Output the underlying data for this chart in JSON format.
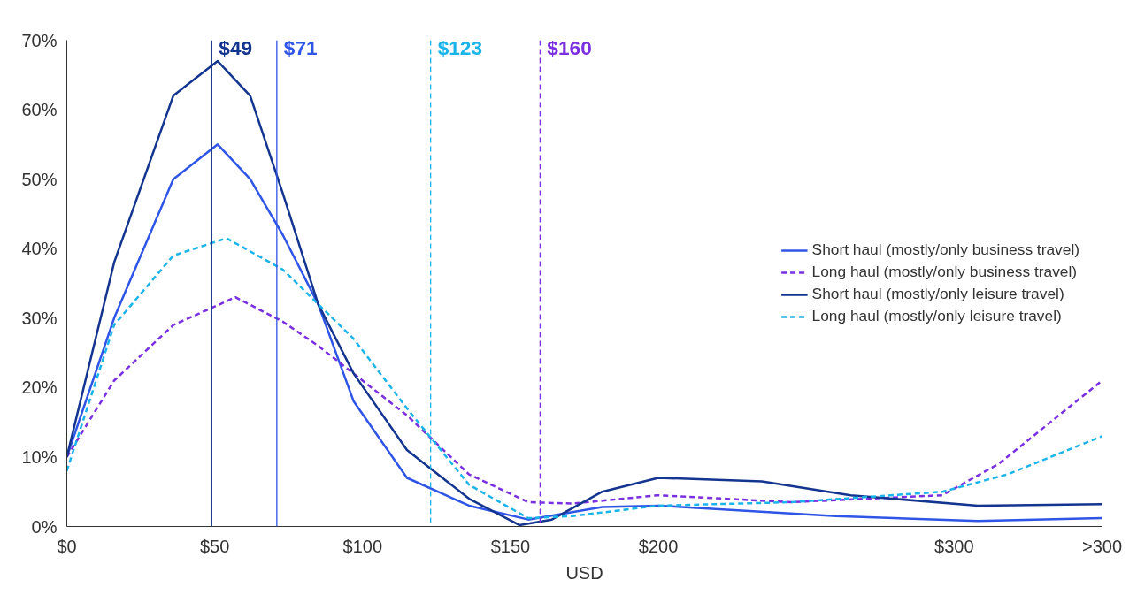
{
  "chart_data": {
    "type": "line",
    "xlabel": "USD",
    "xlim": [
      0,
      350
    ],
    "xticks": [
      {
        "value": 0,
        "label": "$0"
      },
      {
        "value": 50,
        "label": "$50"
      },
      {
        "value": 100,
        "label": "$100"
      },
      {
        "value": 150,
        "label": "$150"
      },
      {
        "value": 200,
        "label": "$200"
      },
      {
        "value": 300,
        "label": "$300"
      },
      {
        "value": 350,
        "label": ">300"
      }
    ],
    "ylim": [
      0,
      70
    ],
    "yticks": [
      {
        "value": 0,
        "label": "0%"
      },
      {
        "value": 10,
        "label": "10%"
      },
      {
        "value": 20,
        "label": "20%"
      },
      {
        "value": 30,
        "label": "30%"
      },
      {
        "value": 40,
        "label": "40%"
      },
      {
        "value": 50,
        "label": "50%"
      },
      {
        "value": 60,
        "label": "60%"
      },
      {
        "value": 70,
        "label": "70%"
      }
    ],
    "grid": false,
    "legend": "right",
    "marker": "none",
    "series": [
      {
        "name": "Short haul (mostly/only business travel)",
        "color": "#2f55e6",
        "line_style": "solid",
        "x": [
          0,
          16,
          36,
          51,
          62,
          73,
          85,
          97,
          115,
          136,
          156,
          181,
          200,
          260,
          308,
          350
        ],
        "values": [
          10,
          30,
          50,
          55,
          50,
          42,
          32,
          18,
          7,
          3,
          1,
          2.8,
          3,
          1.5,
          0.8,
          1.2
        ]
      },
      {
        "name": "Long haul (mostly/only business travel)",
        "color": "#7a2fe0",
        "line_style": "dashed",
        "x": [
          0,
          16,
          36,
          57,
          73,
          85,
          97,
          115,
          136,
          156,
          171,
          200,
          245,
          296,
          315,
          350
        ],
        "values": [
          10,
          21,
          29,
          33,
          29.5,
          26,
          22,
          16,
          7.5,
          3.5,
          3.3,
          4.5,
          3.5,
          4.5,
          9,
          21
        ]
      },
      {
        "name": "Short haul (mostly/only leisure travel)",
        "color": "#14358f",
        "line_style": "solid",
        "x": [
          0,
          16,
          36,
          51,
          62,
          73,
          85,
          97,
          115,
          136,
          153,
          164,
          181,
          200,
          235,
          265,
          308,
          350
        ],
        "values": [
          10,
          38,
          62,
          67,
          62,
          48,
          32,
          22,
          11,
          4,
          0.2,
          1,
          5,
          7,
          6.5,
          4.5,
          3,
          3.2
        ]
      },
      {
        "name": "Long haul (mostly/only leisure travel)",
        "color": "#1ab4ea",
        "line_style": "dashed",
        "x": [
          0,
          16,
          36,
          54,
          73,
          85,
          97,
          115,
          136,
          156,
          171,
          200,
          245,
          296,
          318,
          350
        ],
        "values": [
          8,
          29,
          39,
          41.5,
          37,
          32,
          27,
          17,
          6,
          1.2,
          1.5,
          3,
          3.5,
          5,
          7.5,
          13
        ]
      }
    ],
    "ref_lines": [
      {
        "axis": "x",
        "value": 49,
        "label": "$49",
        "color": "#14358f",
        "line_style": "solid"
      },
      {
        "axis": "x",
        "value": 71,
        "label": "$71",
        "color": "#2f55e6",
        "line_style": "solid"
      },
      {
        "axis": "x",
        "value": 123,
        "label": "$123",
        "color": "#1ab4ea",
        "line_style": "dashed"
      },
      {
        "axis": "x",
        "value": 160,
        "label": "$160",
        "color": "#7a2fe0",
        "line_style": "dashed"
      }
    ]
  }
}
